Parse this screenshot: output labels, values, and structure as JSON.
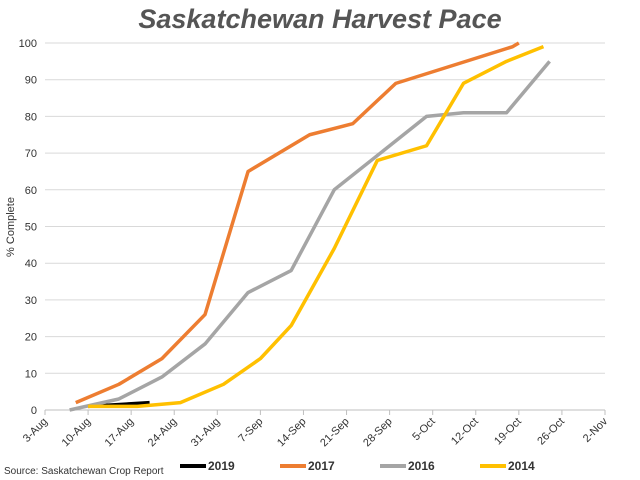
{
  "chart_data": {
    "type": "line",
    "title": "Saskatchewan Harvest Pace",
    "y_label": "% Complete",
    "source": "Source: Saskatchewan Crop Report",
    "xlim": [
      215,
      306
    ],
    "xticks": [
      {
        "value": 215,
        "label": "3-Aug"
      },
      {
        "value": 222,
        "label": "10-Aug"
      },
      {
        "value": 229,
        "label": "17-Aug"
      },
      {
        "value": 236,
        "label": "24-Aug"
      },
      {
        "value": 243,
        "label": "31-Aug"
      },
      {
        "value": 250,
        "label": "7-Sep"
      },
      {
        "value": 257,
        "label": "14-Sep"
      },
      {
        "value": 264,
        "label": "21-Sep"
      },
      {
        "value": 271,
        "label": "28-Sep"
      },
      {
        "value": 278,
        "label": "5-Oct"
      },
      {
        "value": 285,
        "label": "12-Oct"
      },
      {
        "value": 292,
        "label": "19-Oct"
      },
      {
        "value": 299,
        "label": "26-Oct"
      },
      {
        "value": 306,
        "label": "2-Nov"
      }
    ],
    "ylim": [
      0,
      100
    ],
    "yticks": [
      0,
      10,
      20,
      30,
      40,
      50,
      60,
      70,
      80,
      90,
      100
    ],
    "grid": true,
    "series": [
      {
        "name": "2019",
        "color": "#000000",
        "x": [
          222,
          232
        ],
        "values": [
          1,
          2
        ]
      },
      {
        "name": "2017",
        "color": "#ed7d31",
        "x": [
          220,
          227,
          234,
          241,
          248,
          258,
          265,
          272,
          291,
          292
        ],
        "values": [
          2,
          7,
          14,
          26,
          65,
          75,
          78,
          89,
          99,
          100
        ]
      },
      {
        "name": "2016",
        "color": "#a5a5a5",
        "x": [
          219,
          227,
          234,
          241,
          248,
          255,
          262,
          277,
          283,
          290,
          297
        ],
        "values": [
          0,
          3,
          9,
          18,
          32,
          38,
          60,
          80,
          81,
          81,
          95
        ]
      },
      {
        "name": "2014",
        "color": "#ffc000",
        "x": [
          222,
          230,
          237,
          244,
          250,
          255,
          262,
          269,
          277,
          283,
          290,
          296
        ],
        "values": [
          1,
          1,
          2,
          7,
          14,
          23,
          44,
          68,
          72,
          89,
          95,
          99
        ]
      }
    ]
  }
}
